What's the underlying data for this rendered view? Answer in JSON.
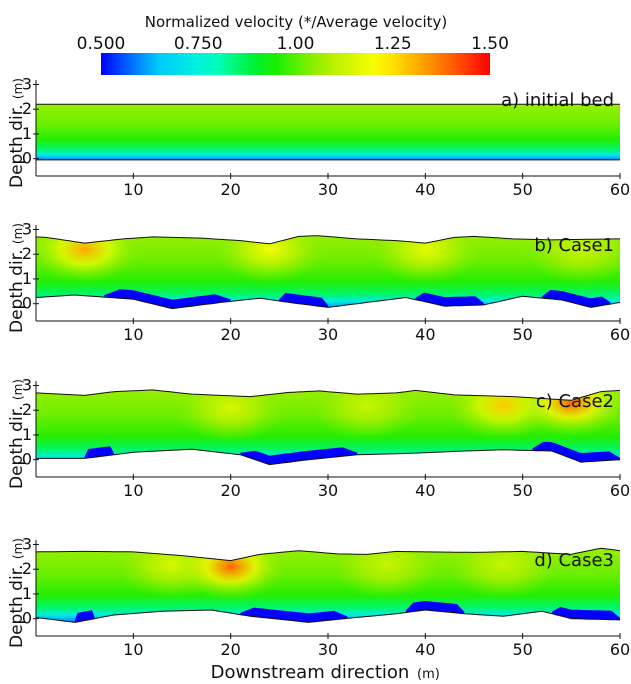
{
  "chart_data": {
    "type": "heatmap",
    "colorbar": {
      "title": "Normalized velocity (*/Average velocity)",
      "tick_labels": [
        "0.500",
        "0.750",
        "1.00",
        "1.25",
        "1.50"
      ],
      "tick_values": [
        0.5,
        0.75,
        1.0,
        1.25,
        1.5
      ],
      "range": [
        0.5,
        1.5
      ],
      "colors": [
        "#0000ff",
        "#00c8ff",
        "#00ffd0",
        "#00ee00",
        "#aaee00",
        "#ffff00",
        "#ff8800",
        "#ff0000"
      ]
    },
    "xlabel": "Downstream direction",
    "xlabel_unit": "(m)",
    "ylabel": "Depth dir.",
    "ylabel_unit": "(m)",
    "xlim": [
      0,
      60
    ],
    "ylim": [
      -0.7,
      3.1
    ],
    "x_ticks": [
      10,
      20,
      30,
      40,
      50,
      60
    ],
    "y_ticks": [
      0,
      1,
      2,
      3
    ],
    "panels": [
      {
        "label": "a) initial bed",
        "water_surface": [
          [
            0,
            2.2
          ],
          [
            60,
            2.2
          ]
        ],
        "bed": [
          [
            0,
            -0.05
          ],
          [
            60,
            -0.05
          ]
        ],
        "bed_depressions": [],
        "hotspots": []
      },
      {
        "label": "b) Case1",
        "water_surface": [
          [
            0,
            2.7
          ],
          [
            1,
            2.68
          ],
          [
            5,
            2.45
          ],
          [
            9,
            2.62
          ],
          [
            12,
            2.7
          ],
          [
            17,
            2.65
          ],
          [
            21,
            2.55
          ],
          [
            24,
            2.42
          ],
          [
            27,
            2.72
          ],
          [
            29,
            2.75
          ],
          [
            33,
            2.62
          ],
          [
            37,
            2.55
          ],
          [
            40,
            2.45
          ],
          [
            43,
            2.68
          ],
          [
            45,
            2.72
          ],
          [
            49,
            2.62
          ],
          [
            53,
            2.58
          ],
          [
            56,
            2.6
          ],
          [
            60,
            2.62
          ]
        ],
        "bed": [
          [
            0,
            0.25
          ],
          [
            4,
            0.35
          ],
          [
            10,
            0.18
          ],
          [
            14,
            -0.2
          ],
          [
            19,
            0.05
          ],
          [
            23,
            0.22
          ],
          [
            26,
            0.05
          ],
          [
            30,
            -0.15
          ],
          [
            34,
            0.05
          ],
          [
            38,
            0.25
          ],
          [
            42,
            -0.1
          ],
          [
            46,
            -0.05
          ],
          [
            50,
            0.3
          ],
          [
            54,
            0.15
          ],
          [
            57,
            -0.15
          ],
          [
            60,
            0.05
          ]
        ],
        "bed_depressions": [
          [
            7,
            20
          ],
          [
            25,
            30
          ],
          [
            39,
            46
          ],
          [
            52,
            59
          ]
        ],
        "hotspots": [
          {
            "x": 5,
            "y": 2.2,
            "v": 1.32
          },
          {
            "x": 24,
            "y": 2.2,
            "v": 1.2
          },
          {
            "x": 40,
            "y": 2.2,
            "v": 1.18
          },
          {
            "x": 56,
            "y": 2.2,
            "v": 1.12
          }
        ]
      },
      {
        "label": "c) Case2",
        "water_surface": [
          [
            0,
            2.7
          ],
          [
            5,
            2.6
          ],
          [
            8,
            2.75
          ],
          [
            12,
            2.82
          ],
          [
            16,
            2.65
          ],
          [
            22,
            2.55
          ],
          [
            26,
            2.72
          ],
          [
            29,
            2.78
          ],
          [
            33,
            2.65
          ],
          [
            37,
            2.7
          ],
          [
            39,
            2.8
          ],
          [
            43,
            2.62
          ],
          [
            49,
            2.55
          ],
          [
            55,
            2.4
          ],
          [
            58,
            2.75
          ],
          [
            60,
            2.8
          ]
        ],
        "bed": [
          [
            0,
            0.05
          ],
          [
            5,
            0.05
          ],
          [
            10,
            0.3
          ],
          [
            16,
            0.42
          ],
          [
            21,
            0.2
          ],
          [
            24,
            -0.2
          ],
          [
            28,
            0.0
          ],
          [
            33,
            0.2
          ],
          [
            38,
            0.25
          ],
          [
            44,
            0.35
          ],
          [
            48,
            0.4
          ],
          [
            53,
            0.35
          ],
          [
            56,
            -0.1
          ],
          [
            60,
            0.0
          ]
        ],
        "bed_depressions": [
          [
            5,
            8
          ],
          [
            21,
            33
          ],
          [
            51,
            60
          ]
        ],
        "hotspots": [
          {
            "x": 20,
            "y": 2.1,
            "v": 1.15
          },
          {
            "x": 34,
            "y": 2.2,
            "v": 1.12
          },
          {
            "x": 48,
            "y": 2.2,
            "v": 1.28
          },
          {
            "x": 55,
            "y": 2.3,
            "v": 1.4
          }
        ]
      },
      {
        "label": "d) Case3",
        "water_surface": [
          [
            0,
            2.7
          ],
          [
            5,
            2.72
          ],
          [
            10,
            2.7
          ],
          [
            15,
            2.55
          ],
          [
            20,
            2.35
          ],
          [
            23,
            2.6
          ],
          [
            27,
            2.75
          ],
          [
            31,
            2.62
          ],
          [
            34,
            2.6
          ],
          [
            37,
            2.72
          ],
          [
            40,
            2.7
          ],
          [
            45,
            2.68
          ],
          [
            50,
            2.72
          ],
          [
            55,
            2.6
          ],
          [
            58,
            2.85
          ],
          [
            60,
            2.75
          ]
        ],
        "bed": [
          [
            0,
            0.05
          ],
          [
            4,
            -0.15
          ],
          [
            8,
            0.15
          ],
          [
            13,
            0.3
          ],
          [
            18,
            0.35
          ],
          [
            22,
            0.1
          ],
          [
            28,
            -0.15
          ],
          [
            33,
            0.05
          ],
          [
            37,
            0.2
          ],
          [
            40,
            0.35
          ],
          [
            44,
            0.2
          ],
          [
            48,
            0.1
          ],
          [
            52,
            0.3
          ],
          [
            55,
            0.0
          ],
          [
            60,
            -0.05
          ]
        ],
        "bed_depressions": [
          [
            4,
            6
          ],
          [
            21,
            32
          ],
          [
            38,
            44
          ],
          [
            53,
            60
          ]
        ],
        "hotspots": [
          {
            "x": 14,
            "y": 2.2,
            "v": 1.15
          },
          {
            "x": 20,
            "y": 2.1,
            "v": 1.4
          },
          {
            "x": 36,
            "y": 2.2,
            "v": 1.12
          },
          {
            "x": 48,
            "y": 2.2,
            "v": 1.12
          }
        ]
      }
    ]
  }
}
